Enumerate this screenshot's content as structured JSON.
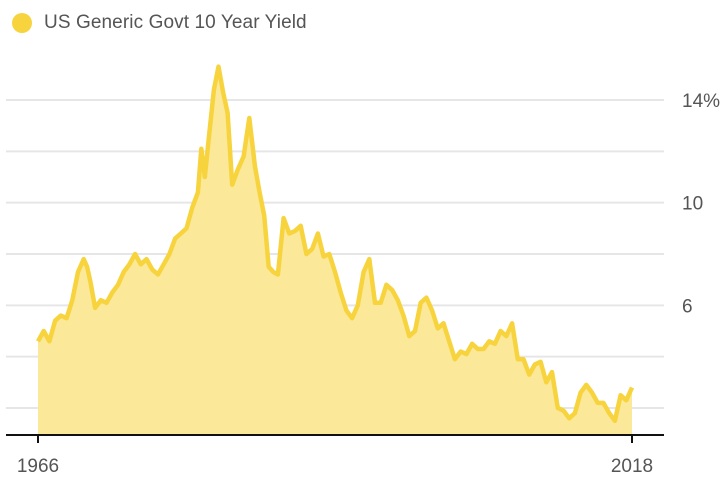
{
  "legend": {
    "label": "US Generic Govt 10 Year Yield",
    "color": "#F7D43E"
  },
  "chart_data": {
    "type": "area",
    "title": "",
    "series": [
      {
        "name": "US Generic Govt 10 Year Yield",
        "color": "#F7D43E",
        "fill": "#FBE898",
        "x": [
          1966.0,
          1966.5,
          1967.0,
          1967.5,
          1968.0,
          1968.5,
          1969.0,
          1969.5,
          1970.0,
          1970.3,
          1970.6,
          1971.0,
          1971.5,
          1972.0,
          1972.5,
          1973.0,
          1973.5,
          1974.0,
          1974.5,
          1975.0,
          1975.5,
          1976.0,
          1976.5,
          1977.0,
          1977.5,
          1978.0,
          1978.5,
          1979.0,
          1979.5,
          1980.0,
          1980.3,
          1980.6,
          1981.0,
          1981.4,
          1981.8,
          1982.2,
          1982.6,
          1983.0,
          1983.5,
          1984.0,
          1984.5,
          1985.0,
          1985.4,
          1985.8,
          1986.2,
          1986.6,
          1987.0,
          1987.5,
          1988.0,
          1988.5,
          1989.0,
          1989.5,
          1990.0,
          1990.5,
          1991.0,
          1991.5,
          1992.0,
          1992.5,
          1993.0,
          1993.5,
          1994.0,
          1994.5,
          1995.0,
          1995.5,
          1996.0,
          1996.5,
          1997.0,
          1997.5,
          1998.0,
          1998.5,
          1999.0,
          1999.5,
          2000.0,
          2000.5,
          2001.0,
          2001.5,
          2002.0,
          2002.5,
          2003.0,
          2003.5,
          2004.0,
          2004.5,
          2005.0,
          2005.5,
          2006.0,
          2006.5,
          2007.0,
          2007.5,
          2008.0,
          2008.5,
          2009.0,
          2009.5,
          2010.0,
          2010.5,
          2011.0,
          2011.5,
          2012.0,
          2012.5,
          2013.0,
          2013.5,
          2014.0,
          2014.5,
          2015.0,
          2015.5,
          2016.0,
          2016.5,
          2017.0,
          2017.5,
          2018.0
        ],
        "values": [
          4.6,
          5.0,
          4.6,
          5.4,
          5.6,
          5.5,
          6.2,
          7.3,
          7.8,
          7.5,
          6.9,
          5.9,
          6.2,
          6.1,
          6.5,
          6.8,
          7.3,
          7.6,
          8.0,
          7.6,
          7.8,
          7.4,
          7.2,
          7.6,
          8.0,
          8.6,
          8.8,
          9.0,
          9.8,
          10.4,
          12.1,
          11.0,
          12.7,
          14.4,
          15.3,
          14.3,
          13.5,
          10.7,
          11.3,
          11.8,
          13.3,
          11.4,
          10.4,
          9.5,
          7.5,
          7.3,
          7.2,
          9.4,
          8.8,
          8.9,
          9.1,
          8.0,
          8.2,
          8.8,
          7.9,
          8.0,
          7.3,
          6.5,
          5.8,
          5.5,
          6.0,
          7.3,
          7.8,
          6.1,
          6.1,
          6.8,
          6.6,
          6.2,
          5.6,
          4.8,
          5.0,
          6.1,
          6.3,
          5.8,
          5.1,
          5.3,
          4.6,
          3.9,
          4.2,
          4.1,
          4.5,
          4.3,
          4.3,
          4.6,
          4.5,
          5.0,
          4.8,
          5.3,
          3.9,
          3.9,
          3.3,
          3.7,
          3.8,
          3.0,
          3.4,
          2.0,
          1.9,
          1.6,
          1.8,
          2.6,
          2.9,
          2.6,
          2.2,
          2.2,
          1.8,
          1.5,
          2.5,
          2.3,
          2.8
        ]
      }
    ],
    "xlim": [
      1966,
      2018
    ],
    "ylim": [
      1,
      15
    ],
    "yticks": [
      2,
      4,
      6,
      8,
      10,
      12,
      14
    ],
    "ytick_labels": {
      "6": "6",
      "10": "10",
      "14": "14%"
    },
    "x_labels": [
      "1966",
      "2018"
    ],
    "xlabel": "",
    "ylabel": "",
    "grid": true
  }
}
